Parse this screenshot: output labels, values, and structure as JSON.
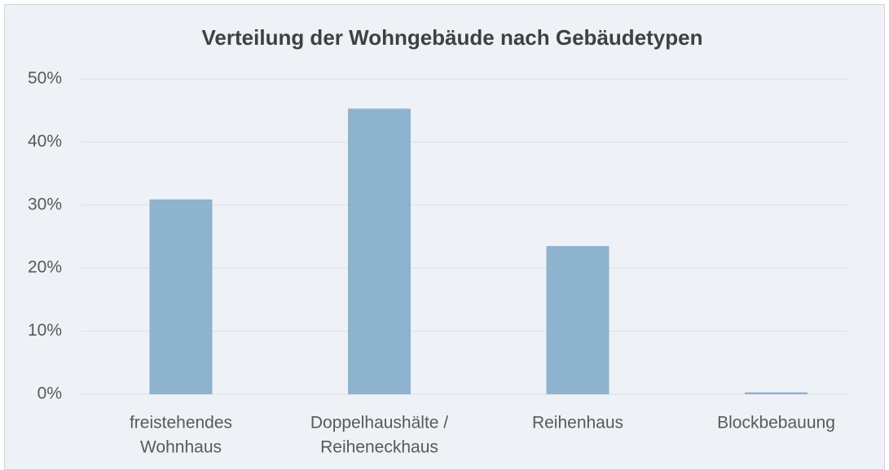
{
  "chart_data": {
    "type": "bar",
    "title": "Verteilung der Wohngebäude nach Gebäudetypen",
    "categories": [
      [
        "freistehendes",
        "Wohnhaus"
      ],
      [
        "Doppelhaushälte /",
        "Reiheneckhaus"
      ],
      [
        "Reihenhaus"
      ],
      [
        "Blockbebauung"
      ]
    ],
    "values": [
      30.9,
      45.3,
      23.5,
      0.3
    ],
    "color": "#8db3cf",
    "ylim": [
      0,
      50
    ],
    "yticks": [
      {
        "value": 0,
        "label": "0%"
      },
      {
        "value": 10,
        "label": "10%"
      },
      {
        "value": 20,
        "label": "20%"
      },
      {
        "value": 30,
        "label": "30%"
      },
      {
        "value": 40,
        "label": "40%"
      },
      {
        "value": 50,
        "label": "50%"
      }
    ],
    "grid": true
  }
}
